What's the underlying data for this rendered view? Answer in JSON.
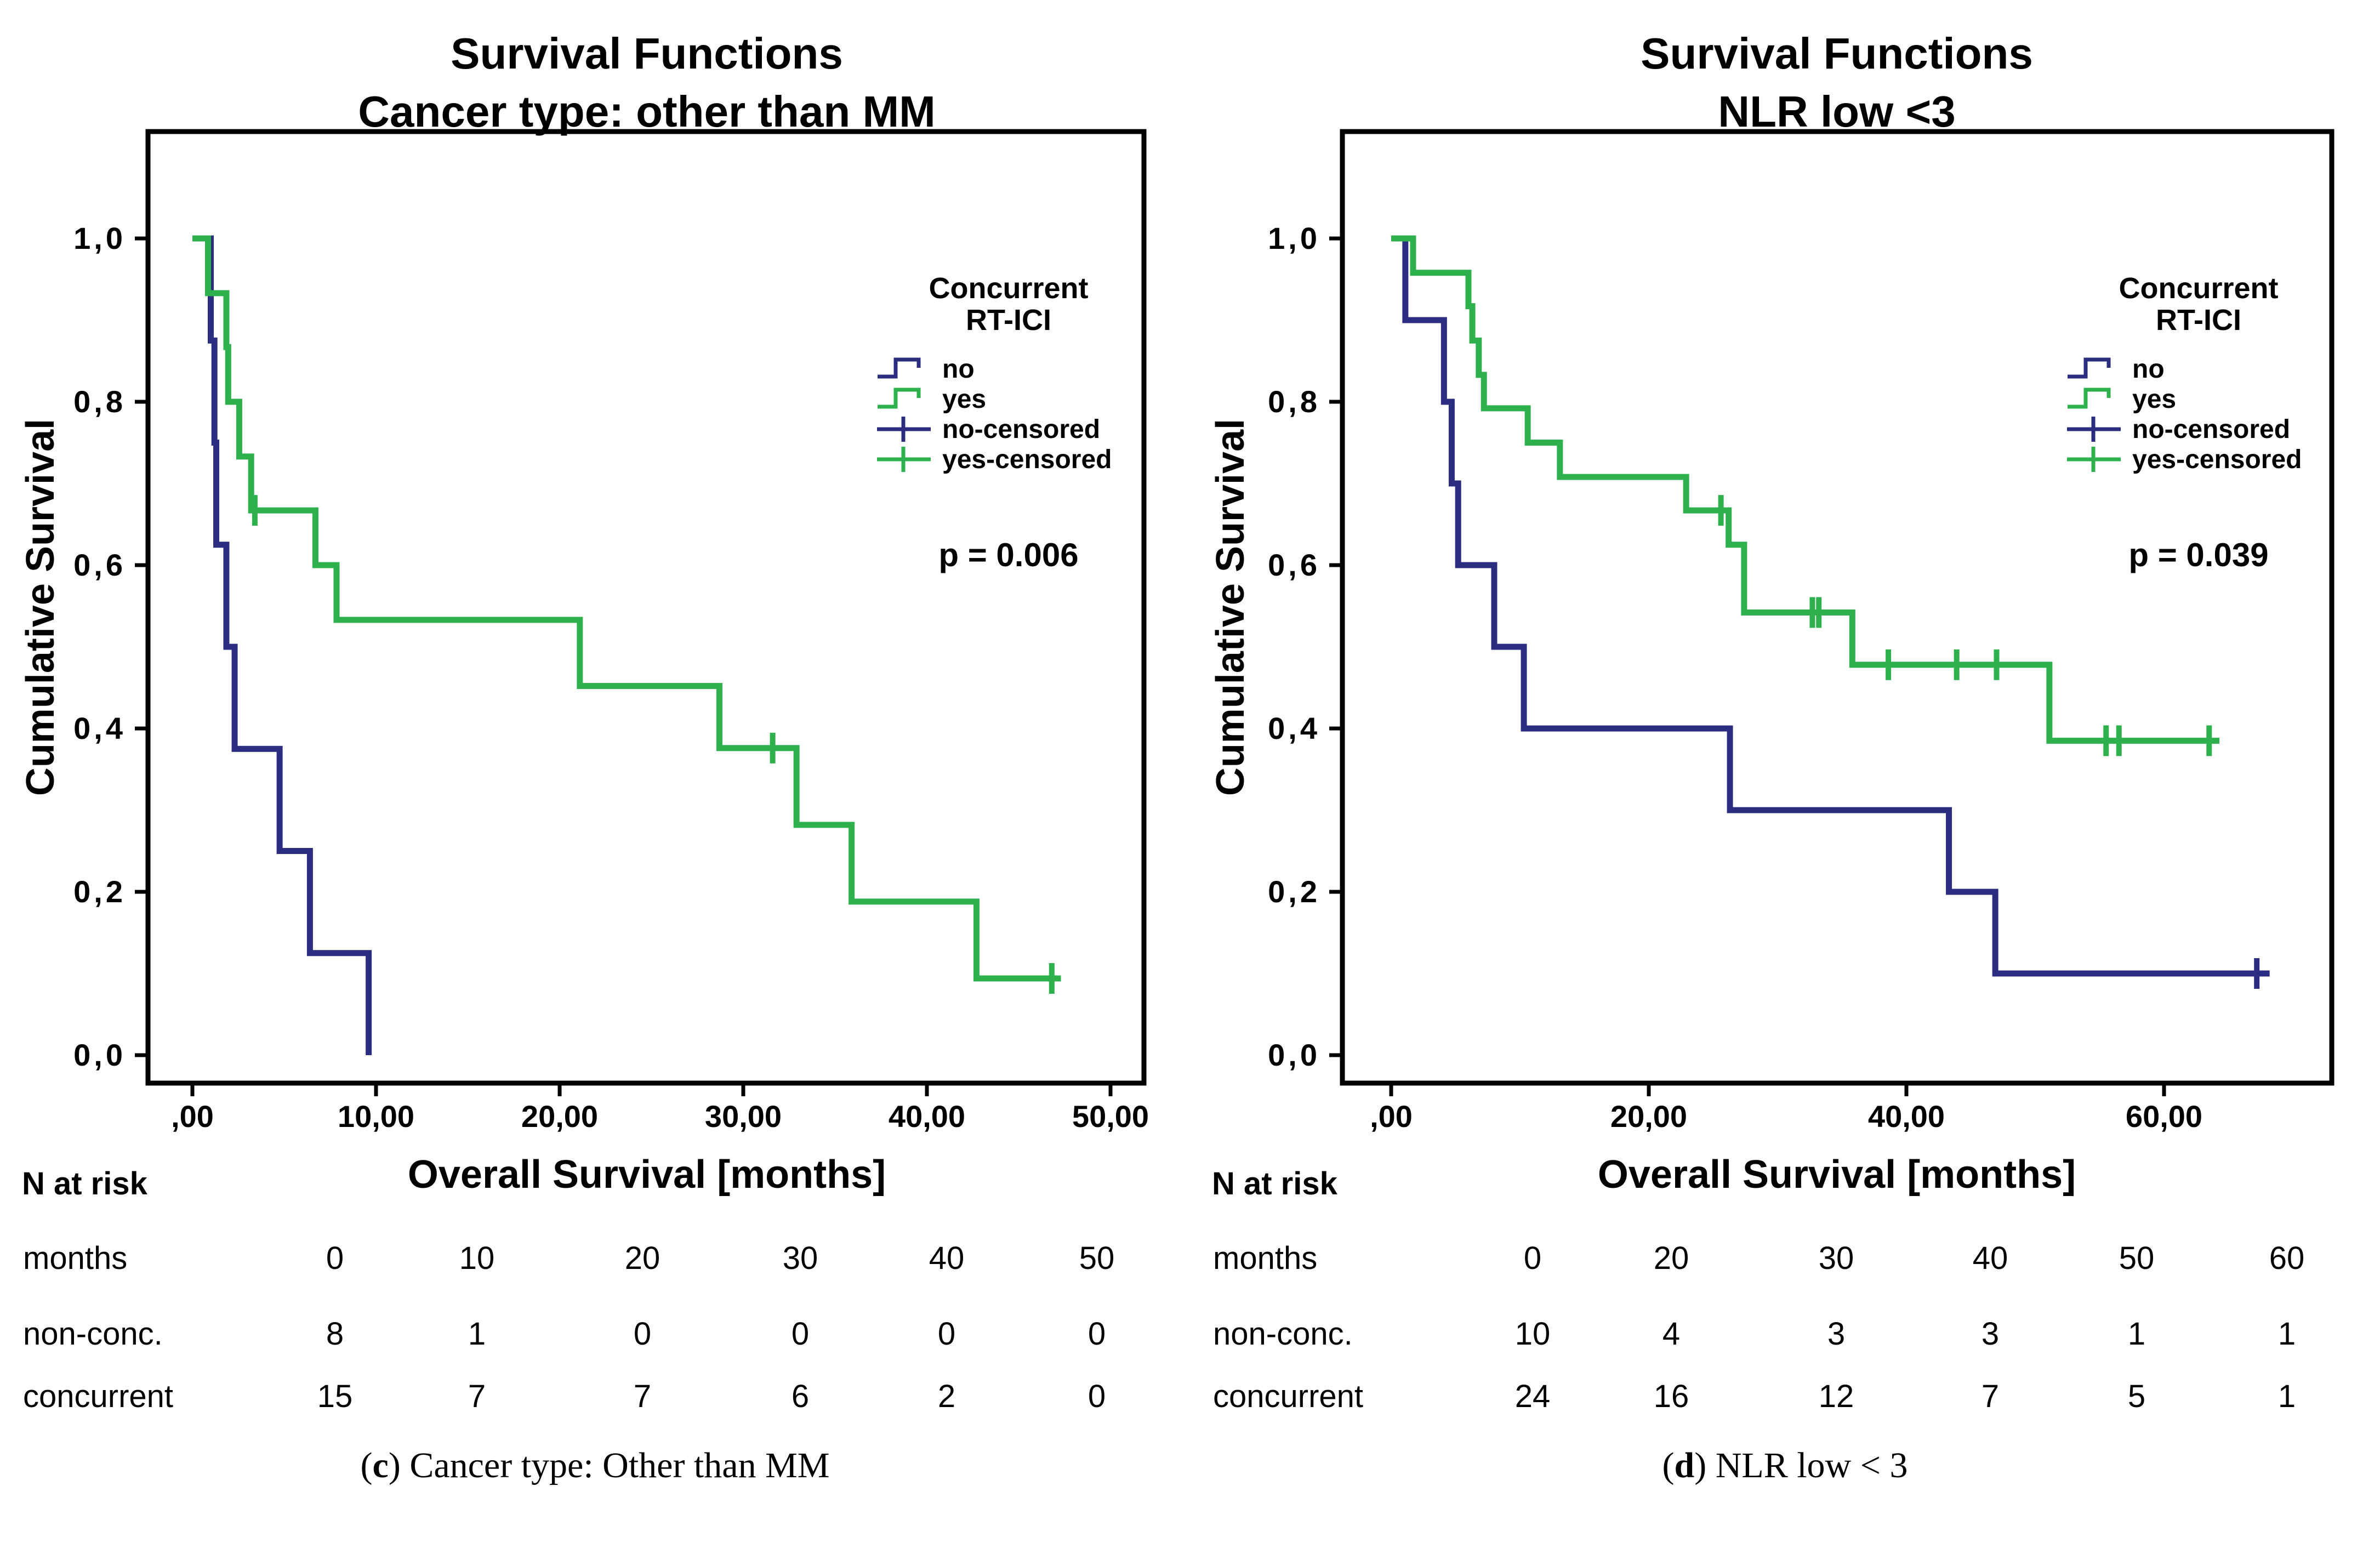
{
  "figure": {
    "background": "#ffffff",
    "axis_color": "#000000"
  },
  "chart_data": [
    {
      "type": "line",
      "subtype": "kaplan-meier-step",
      "panel_id": "c",
      "title_line1": "Survival Functions",
      "title_line2": "Cancer type: other than MM",
      "ylabel": "Cumulative Survival",
      "xlabel": "Overall Survival [months]",
      "p_label": "p = 0.006",
      "legend_title_line1": "Concurrent",
      "legend_title_line2": "RT-ICI",
      "legend_items": [
        {
          "label": "no",
          "symbol": "step",
          "series": "no"
        },
        {
          "label": "yes",
          "symbol": "step",
          "series": "yes"
        },
        {
          "label": "no-censored",
          "symbol": "censor",
          "series": "no"
        },
        {
          "label": "yes-censored",
          "symbol": "censor",
          "series": "yes"
        }
      ],
      "xlim": [
        -2.4,
        51.8
      ],
      "ylim": [
        -0.035,
        1.13
      ],
      "yticks": [
        {
          "label": "1,0",
          "v": 1.0
        },
        {
          "label": "0,8",
          "v": 0.8
        },
        {
          "label": "0,6",
          "v": 0.6
        },
        {
          "label": "0,4",
          "v": 0.4
        },
        {
          "label": "0,2",
          "v": 0.2
        },
        {
          "label": "0,0",
          "v": 0.0
        }
      ],
      "xticks": [
        {
          "label": ",00",
          "t": 0
        },
        {
          "label": "10,00",
          "t": 10
        },
        {
          "label": "20,00",
          "t": 20
        },
        {
          "label": "30,00",
          "t": 30
        },
        {
          "label": "40,00",
          "t": 40
        },
        {
          "label": "50,00",
          "t": 50
        }
      ],
      "series": [
        {
          "name": "no",
          "color": "#2B2E80",
          "steps": [
            [
              0,
              1.0
            ],
            [
              1.0,
              0.875
            ],
            [
              1.2,
              0.75
            ],
            [
              1.3,
              0.625
            ],
            [
              1.85,
              0.5
            ],
            [
              2.3,
              0.375
            ],
            [
              4.75,
              0.25
            ],
            [
              6.4,
              0.125
            ],
            [
              9.6,
              0.0
            ]
          ],
          "end_t": 9.6,
          "censors": []
        },
        {
          "name": "yes",
          "color": "#2EB14C",
          "steps": [
            [
              0,
              1.0
            ],
            [
              0.85,
              0.933
            ],
            [
              1.85,
              0.867
            ],
            [
              1.95,
              0.8
            ],
            [
              2.55,
              0.733
            ],
            [
              3.2,
              0.667
            ],
            [
              6.7,
              0.6
            ],
            [
              7.85,
              0.533
            ],
            [
              21.1,
              0.452
            ],
            [
              28.7,
              0.376
            ],
            [
              32.9,
              0.282
            ],
            [
              35.9,
              0.188
            ],
            [
              42.7,
              0.094
            ]
          ],
          "end_t": 47.3,
          "censors": [
            [
              3.4,
              0.667
            ],
            [
              31.6,
              0.376
            ],
            [
              46.8,
              0.094
            ]
          ]
        }
      ],
      "at_risk": {
        "section_label": "N at risk",
        "row_header": "months",
        "times": [
          "0",
          "10",
          "20",
          "30",
          "40",
          "50"
        ],
        "rows": [
          {
            "label": "non-conc.",
            "values": [
              "8",
              "1",
              "0",
              "0",
              "0",
              "0"
            ]
          },
          {
            "label": "concurrent",
            "values": [
              "15",
              "7",
              "7",
              "6",
              "2",
              "0"
            ]
          }
        ]
      },
      "caption_letter": "c",
      "caption_text": "Cancer type: Other than MM"
    },
    {
      "type": "line",
      "subtype": "kaplan-meier-step",
      "panel_id": "d",
      "title_line1": "Survival Functions",
      "title_line2": "NLR low <3",
      "ylabel": "Cumulative Survival",
      "xlabel": "Overall Survival [months]",
      "p_label": "p = 0.039",
      "legend_title_line1": "Concurrent",
      "legend_title_line2": "RT-ICI",
      "legend_items": [
        {
          "label": "no",
          "symbol": "step",
          "series": "no"
        },
        {
          "label": "yes",
          "symbol": "step",
          "series": "yes"
        },
        {
          "label": "no-censored",
          "symbol": "censor",
          "series": "no"
        },
        {
          "label": "yes-censored",
          "symbol": "censor",
          "series": "yes"
        }
      ],
      "xlim": [
        -3.8,
        73.0
      ],
      "ylim": [
        -0.035,
        1.13
      ],
      "yticks": [
        {
          "label": "1,0",
          "v": 1.0
        },
        {
          "label": "0,8",
          "v": 0.8
        },
        {
          "label": "0,6",
          "v": 0.6
        },
        {
          "label": "0,4",
          "v": 0.4
        },
        {
          "label": "0,2",
          "v": 0.2
        },
        {
          "label": "0,0",
          "v": 0.0
        }
      ],
      "xticks": [
        {
          "label": ",00",
          "t": 0
        },
        {
          "label": "20,00",
          "t": 20
        },
        {
          "label": "40,00",
          "t": 40
        },
        {
          "label": "60,00",
          "t": 60
        }
      ],
      "series": [
        {
          "name": "no",
          "color": "#2B2E80",
          "steps": [
            [
              0,
              1.0
            ],
            [
              1.1,
              0.9
            ],
            [
              4.1,
              0.8
            ],
            [
              4.7,
              0.7
            ],
            [
              5.2,
              0.6
            ],
            [
              8.0,
              0.5
            ],
            [
              10.3,
              0.4
            ],
            [
              26.3,
              0.3
            ],
            [
              43.3,
              0.2
            ],
            [
              46.9,
              0.1
            ]
          ],
          "end_t": 68.2,
          "censors": [
            [
              67.2,
              0.1
            ]
          ]
        },
        {
          "name": "yes",
          "color": "#2EB14C",
          "steps": [
            [
              0,
              1.0
            ],
            [
              1.7,
              0.958
            ],
            [
              6.0,
              0.917
            ],
            [
              6.3,
              0.875
            ],
            [
              6.8,
              0.833
            ],
            [
              7.2,
              0.792
            ],
            [
              10.6,
              0.75
            ],
            [
              13.1,
              0.708
            ],
            [
              22.9,
              0.667
            ],
            [
              26.2,
              0.625
            ],
            [
              27.4,
              0.542
            ],
            [
              35.8,
              0.478
            ],
            [
              51.1,
              0.385
            ]
          ],
          "end_t": 64.3,
          "censors": [
            [
              25.6,
              0.667
            ],
            [
              32.7,
              0.542
            ],
            [
              33.2,
              0.542
            ],
            [
              38.6,
              0.478
            ],
            [
              43.9,
              0.478
            ],
            [
              47.0,
              0.478
            ],
            [
              55.5,
              0.385
            ],
            [
              56.5,
              0.385
            ],
            [
              63.5,
              0.385
            ]
          ]
        }
      ],
      "at_risk": {
        "section_label": "N at risk",
        "row_header": "months",
        "times": [
          "0",
          "20",
          "30",
          "40",
          "50",
          "60"
        ],
        "rows": [
          {
            "label": "non-conc.",
            "values": [
              "10",
              "4",
              "3",
              "3",
              "1",
              "1"
            ]
          },
          {
            "label": "concurrent",
            "values": [
              "24",
              "16",
              "12",
              "7",
              "5",
              "1"
            ]
          }
        ]
      },
      "caption_letter": "d",
      "caption_text": "NLR low < 3"
    }
  ]
}
